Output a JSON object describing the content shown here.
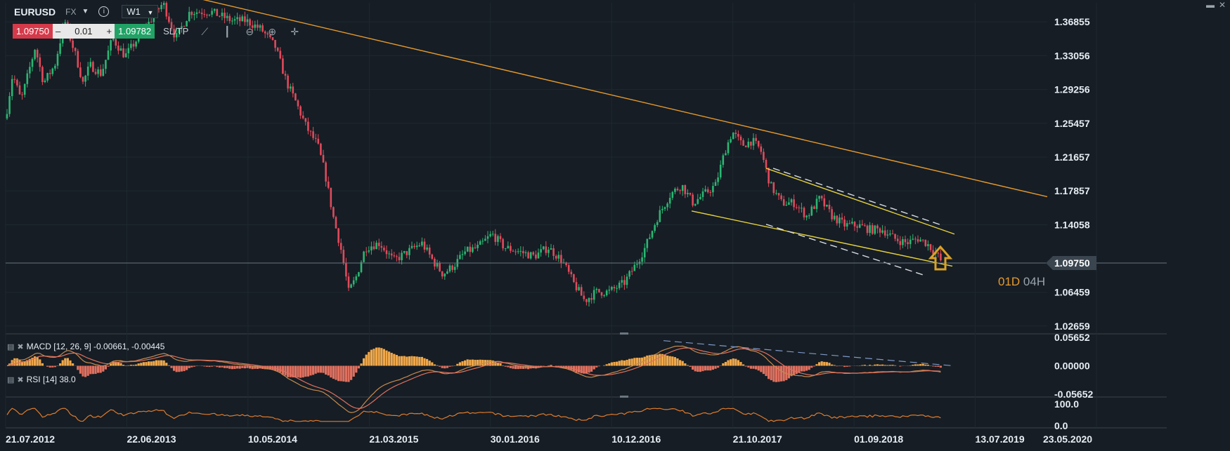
{
  "header": {
    "symbol": "EURUSD",
    "market": "FX",
    "timeframe": "W1",
    "sell_price": "1.09750",
    "buy_price": "1.09782",
    "quantity": "0.01",
    "qty_minus": "–",
    "qty_plus": "+",
    "sltp_label": "SL/TP",
    "info_icon": "info-icon",
    "dropdown_icon": "chevron-down-icon"
  },
  "toolbar_icons": [
    "line-chart-icon",
    "candles-icon",
    "zoom-out-icon",
    "zoom-in-icon",
    "crosshair-icon"
  ],
  "window_controls": [
    "maximize-icon",
    "close-icon"
  ],
  "overlay": {
    "tf_part1": "01D",
    "tf_part2": "04H"
  },
  "indicators": {
    "macd_label": "MACD [12, 26, 9] -0.00661, -0.00445",
    "rsi_label": "RSI [14] 38.0"
  },
  "colors": {
    "background": "#161d24",
    "up_candle": "#2bb673",
    "down_candle": "#e04a5c",
    "trendline": "#e89a2c",
    "channel": "#e6d23c",
    "arrow": "#d9a228",
    "price_tag": "#3a4550"
  },
  "chart_data": {
    "type": "candlestick",
    "symbol": "EURUSD",
    "timeframe": "W1",
    "current_price": 1.0975,
    "price_axis_ticks": [
      "1.36855",
      "1.33056",
      "1.29256",
      "1.25457",
      "1.21657",
      "1.17857",
      "1.14058",
      "1.06459",
      "1.02659"
    ],
    "date_axis_ticks": [
      "21.07.2012",
      "22.06.2013",
      "10.05.2014",
      "21.03.2015",
      "30.01.2016",
      "10.12.2016",
      "21.10.2017",
      "01.09.2018",
      "13.07.2019",
      "23.05.2020"
    ],
    "ylim": [
      1.021,
      1.39
    ],
    "price_path": [
      [
        0,
        1.22
      ],
      [
        18,
        1.31
      ],
      [
        30,
        1.28
      ],
      [
        50,
        1.34
      ],
      [
        62,
        1.3
      ],
      [
        78,
        1.32
      ],
      [
        92,
        1.37
      ],
      [
        108,
        1.33
      ],
      [
        118,
        1.3
      ],
      [
        128,
        1.32
      ],
      [
        144,
        1.31
      ],
      [
        160,
        1.35
      ],
      [
        178,
        1.33
      ],
      [
        196,
        1.35
      ],
      [
        214,
        1.37
      ],
      [
        232,
        1.39
      ],
      [
        250,
        1.35
      ],
      [
        270,
        1.38
      ],
      [
        300,
        1.38
      ],
      [
        330,
        1.37
      ],
      [
        350,
        1.37
      ],
      [
        372,
        1.36
      ],
      [
        392,
        1.34
      ],
      [
        408,
        1.3
      ],
      [
        420,
        1.28
      ],
      [
        436,
        1.25
      ],
      [
        452,
        1.23
      ],
      [
        462,
        1.2
      ],
      [
        474,
        1.15
      ],
      [
        486,
        1.11
      ],
      [
        496,
        1.065
      ],
      [
        506,
        1.08
      ],
      [
        520,
        1.115
      ],
      [
        540,
        1.12
      ],
      [
        560,
        1.1
      ],
      [
        580,
        1.11
      ],
      [
        600,
        1.12
      ],
      [
        616,
        1.1
      ],
      [
        630,
        1.085
      ],
      [
        646,
        1.095
      ],
      [
        662,
        1.11
      ],
      [
        680,
        1.115
      ],
      [
        700,
        1.13
      ],
      [
        718,
        1.115
      ],
      [
        740,
        1.11
      ],
      [
        760,
        1.105
      ],
      [
        780,
        1.115
      ],
      [
        800,
        1.1
      ],
      [
        816,
        1.075
      ],
      [
        832,
        1.055
      ],
      [
        848,
        1.065
      ],
      [
        866,
        1.065
      ],
      [
        888,
        1.075
      ],
      [
        904,
        1.095
      ],
      [
        918,
        1.115
      ],
      [
        936,
        1.15
      ],
      [
        954,
        1.175
      ],
      [
        970,
        1.185
      ],
      [
        986,
        1.165
      ],
      [
        1002,
        1.175
      ],
      [
        1018,
        1.185
      ],
      [
        1032,
        1.225
      ],
      [
        1042,
        1.245
      ],
      [
        1056,
        1.23
      ],
      [
        1070,
        1.235
      ],
      [
        1082,
        1.225
      ],
      [
        1096,
        1.185
      ],
      [
        1112,
        1.165
      ],
      [
        1130,
        1.165
      ],
      [
        1148,
        1.15
      ],
      [
        1166,
        1.17
      ],
      [
        1184,
        1.15
      ],
      [
        1202,
        1.14
      ],
      [
        1220,
        1.14
      ],
      [
        1238,
        1.135
      ],
      [
        1256,
        1.135
      ],
      [
        1272,
        1.125
      ],
      [
        1290,
        1.12
      ],
      [
        1306,
        1.125
      ],
      [
        1318,
        1.12
      ],
      [
        1330,
        1.11
      ],
      [
        1341,
        1.0975
      ]
    ],
    "trendlines": [
      {
        "name": "long-term-resistance",
        "from": [
          276,
          1.396
        ],
        "to": [
          1490,
          1.172
        ]
      },
      {
        "name": "channel-upper",
        "from": [
          1090,
          1.204
        ],
        "to": [
          1358,
          1.13
        ]
      },
      {
        "name": "channel-lower",
        "from": [
          984,
          1.156
        ],
        "to": [
          1355,
          1.094
        ]
      },
      {
        "name": "channel-upper-dashed",
        "from": [
          1100,
          1.204
        ],
        "to": [
          1340,
          1.14
        ]
      },
      {
        "name": "channel-lower-dashed",
        "from": [
          1090,
          1.141
        ],
        "to": [
          1318,
          1.083
        ]
      }
    ],
    "macd": {
      "label": "MACD [12, 26, 9] -0.00661, -0.00445",
      "ticks": [
        "0.05652",
        "0.00000",
        "-0.05652"
      ],
      "ylim": [
        -0.05652,
        0.05652
      ],
      "macd_value": -0.00661,
      "signal_value": -0.00445
    },
    "rsi": {
      "label": "RSI [14] 38.0",
      "ticks": [
        "100.0",
        "0.0"
      ],
      "ylim": [
        0,
        100
      ],
      "value": 38.0
    }
  }
}
